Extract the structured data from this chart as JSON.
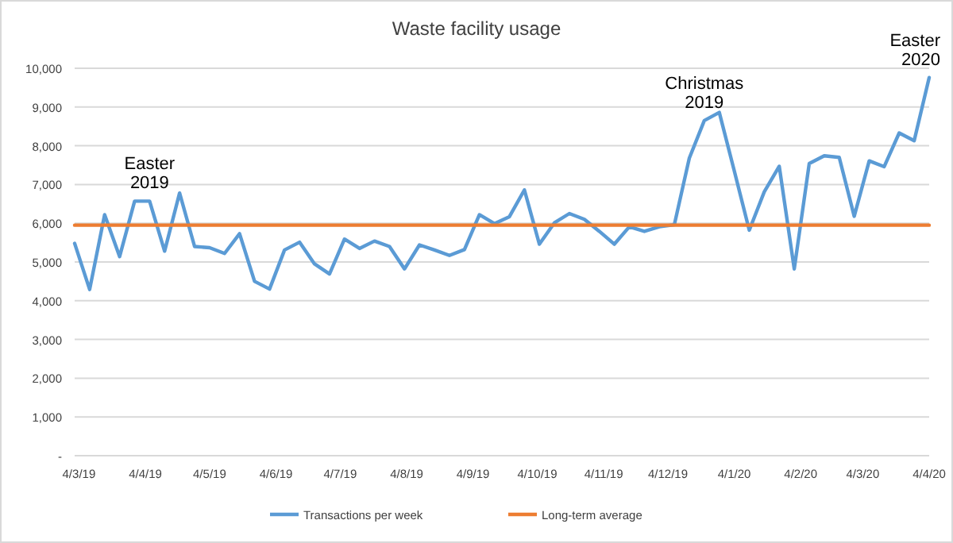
{
  "chart_data": {
    "type": "line",
    "title": "Waste facility usage",
    "x": [
      "2019-03-02",
      "2019-03-09",
      "2019-03-16",
      "2019-03-23",
      "2019-03-30",
      "2019-04-06",
      "2019-04-13",
      "2019-04-20",
      "2019-04-27",
      "2019-05-04",
      "2019-05-11",
      "2019-05-18",
      "2019-05-25",
      "2019-06-01",
      "2019-06-08",
      "2019-06-15",
      "2019-06-22",
      "2019-06-29",
      "2019-07-06",
      "2019-07-13",
      "2019-07-20",
      "2019-07-27",
      "2019-08-03",
      "2019-08-10",
      "2019-08-17",
      "2019-08-24",
      "2019-08-31",
      "2019-09-07",
      "2019-09-14",
      "2019-09-21",
      "2019-09-28",
      "2019-10-05",
      "2019-10-12",
      "2019-10-19",
      "2019-10-26",
      "2019-11-02",
      "2019-11-09",
      "2019-11-16",
      "2019-11-23",
      "2019-11-30",
      "2019-12-07",
      "2019-12-14",
      "2019-12-21",
      "2019-12-28",
      "2020-01-04",
      "2020-01-11",
      "2020-01-18",
      "2020-01-25",
      "2020-02-01",
      "2020-02-08",
      "2020-02-15",
      "2020-02-22",
      "2020-02-29",
      "2020-03-07",
      "2020-03-14",
      "2020-03-21",
      "2020-03-28",
      "2020-04-04"
    ],
    "series": [
      {
        "name": "Transactions per week",
        "color": "#5b9bd5",
        "values": [
          5480,
          4290,
          6220,
          5140,
          6570,
          6570,
          5280,
          6780,
          5400,
          5370,
          5220,
          5730,
          4500,
          4300,
          5310,
          5510,
          4950,
          4690,
          5590,
          5350,
          5540,
          5400,
          4820,
          5440,
          5310,
          5170,
          5320,
          6220,
          5990,
          6170,
          6860,
          5460,
          6010,
          6250,
          6100,
          5790,
          5460,
          5910,
          5790,
          5910,
          5960,
          7680,
          8650,
          8860,
          7350,
          5820,
          6810,
          7470,
          4820,
          7540,
          7740,
          7700,
          6180,
          7610,
          7460,
          8330,
          8130,
          9760
        ]
      },
      {
        "name": "Long-term average",
        "color": "#ed7d31",
        "values": [
          5950,
          5950,
          5950,
          5950,
          5950,
          5950,
          5950,
          5950,
          5950,
          5950,
          5950,
          5950,
          5950,
          5950,
          5950,
          5950,
          5950,
          5950,
          5950,
          5950,
          5950,
          5950,
          5950,
          5950,
          5950,
          5950,
          5950,
          5950,
          5950,
          5950,
          5950,
          5950,
          5950,
          5950,
          5950,
          5950,
          5950,
          5950,
          5950,
          5950,
          5950,
          5950,
          5950,
          5950,
          5950,
          5950,
          5950,
          5950,
          5950,
          5950,
          5950,
          5950,
          5950,
          5950,
          5950,
          5950,
          5950,
          5950
        ]
      }
    ],
    "xlim": [
      "2019-03-02",
      "2020-04-04"
    ],
    "xticks": [
      {
        "value": "2019-03-04",
        "label": "4/3/19"
      },
      {
        "value": "2019-04-04",
        "label": "4/4/19"
      },
      {
        "value": "2019-05-04",
        "label": "4/5/19"
      },
      {
        "value": "2019-06-04",
        "label": "4/6/19"
      },
      {
        "value": "2019-07-04",
        "label": "4/7/19"
      },
      {
        "value": "2019-08-04",
        "label": "4/8/19"
      },
      {
        "value": "2019-09-04",
        "label": "4/9/19"
      },
      {
        "value": "2019-10-04",
        "label": "4/10/19"
      },
      {
        "value": "2019-11-04",
        "label": "4/11/19"
      },
      {
        "value": "2019-12-04",
        "label": "4/12/19"
      },
      {
        "value": "2020-01-04",
        "label": "4/1/20"
      },
      {
        "value": "2020-02-04",
        "label": "4/2/20"
      },
      {
        "value": "2020-03-04",
        "label": "4/3/20"
      },
      {
        "value": "2020-04-04",
        "label": "4/4/20"
      }
    ],
    "ylim": [
      0,
      10000
    ],
    "yticks": [
      {
        "value": 0,
        "label": "-"
      },
      {
        "value": 1000,
        "label": "1,000"
      },
      {
        "value": 2000,
        "label": "2,000"
      },
      {
        "value": 3000,
        "label": "3,000"
      },
      {
        "value": 4000,
        "label": "4,000"
      },
      {
        "value": 5000,
        "label": "5,000"
      },
      {
        "value": 6000,
        "label": "6,000"
      },
      {
        "value": 7000,
        "label": "7,000"
      },
      {
        "value": 8000,
        "label": "8,000"
      },
      {
        "value": 9000,
        "label": "9,000"
      },
      {
        "value": 10000,
        "label": "10,000"
      }
    ],
    "grid": "y",
    "legend": "bottom",
    "marker": "none",
    "annotations": [
      {
        "text": "Easter\n2019",
        "x": "2019-04-06",
        "y": 6570
      },
      {
        "text": "Christmas\n2019",
        "x": "2019-12-21",
        "y": 8650
      },
      {
        "text": "Easter\n2020",
        "x": "2020-04-04",
        "y": 9760
      }
    ]
  }
}
